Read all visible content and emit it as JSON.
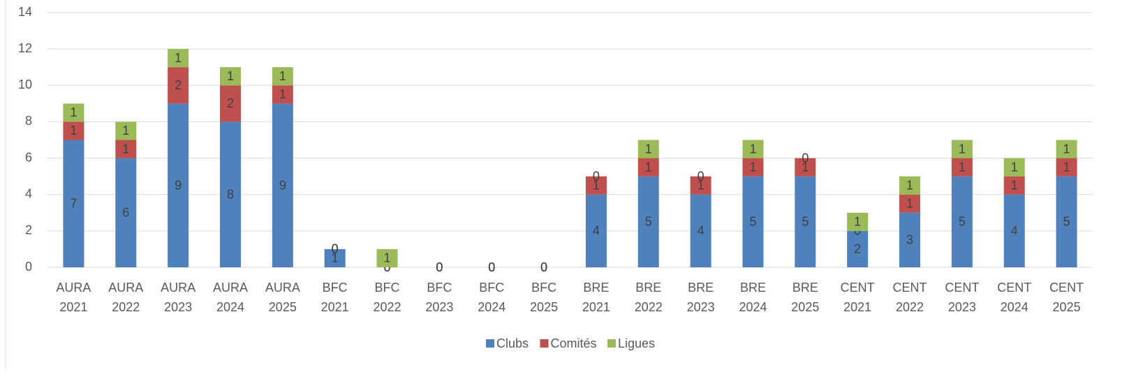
{
  "chart_data": {
    "type": "stacked_bar",
    "categories": [
      "AURA 2021",
      "AURA 2022",
      "AURA 2023",
      "AURA 2024",
      "AURA 2025",
      "BFC 2021",
      "BFC 2022",
      "BFC 2023",
      "BFC 2024",
      "BFC 2025",
      "BRE 2021",
      "BRE 2022",
      "BRE 2023",
      "BRE 2024",
      "BRE 2025",
      "CENT 2021",
      "CENT 2022",
      "CENT 2023",
      "CENT 2024",
      "CENT 2025"
    ],
    "series": [
      {
        "name": "Clubs",
        "color": "#4f81bd",
        "values": [
          7,
          6,
          9,
          8,
          9,
          1,
          0,
          0,
          0,
          0,
          4,
          5,
          4,
          5,
          5,
          2,
          3,
          5,
          4,
          5
        ]
      },
      {
        "name": "Comités",
        "color": "#c0504d",
        "values": [
          1,
          1,
          2,
          2,
          1,
          0,
          0,
          0,
          0,
          0,
          1,
          1,
          1,
          1,
          1,
          0,
          1,
          1,
          1,
          1
        ]
      },
      {
        "name": "Ligues",
        "color": "#9bbb59",
        "values": [
          1,
          1,
          1,
          1,
          1,
          0,
          1,
          0,
          0,
          0,
          0,
          1,
          0,
          1,
          0,
          1,
          1,
          1,
          1,
          1
        ]
      }
    ],
    "ylim": [
      0,
      14
    ],
    "yticks": [
      0,
      2,
      4,
      6,
      8,
      10,
      12,
      14
    ],
    "grid": true,
    "legend": "bottom"
  }
}
